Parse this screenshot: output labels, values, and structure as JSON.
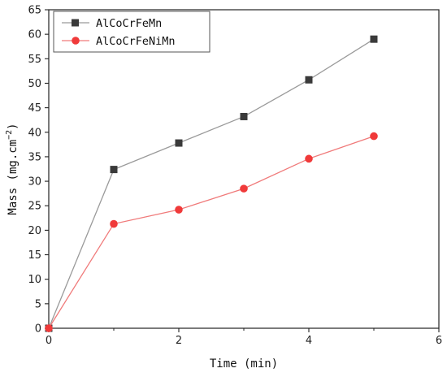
{
  "chart_data": {
    "type": "line",
    "xlabel": "Time (min)",
    "ylabel_main": "Mass (mg.cm",
    "ylabel_sup": "−2",
    "ylabel_end": ")",
    "xlim": [
      0,
      6
    ],
    "ylim": [
      0,
      65
    ],
    "xticks": [
      "0",
      "2",
      "4",
      "6"
    ],
    "yticks": [
      "0",
      "5",
      "10",
      "15",
      "20",
      "25",
      "30",
      "35",
      "40",
      "45",
      "50",
      "55",
      "60",
      "65"
    ],
    "grid": false,
    "legend_position": "top-left",
    "series": [
      {
        "name": "AlCoCrFeMn",
        "marker": "square",
        "marker_color": "#3a3a3a",
        "line_color": "#9a9a9a",
        "x": [
          0,
          1,
          2,
          3,
          4,
          5
        ],
        "y": [
          0,
          32.4,
          37.8,
          43.2,
          50.7,
          59.0
        ]
      },
      {
        "name": "AlCoCrFeNiMn",
        "marker": "circle",
        "marker_color": "#f03a3a",
        "line_color": "#f07a7a",
        "x": [
          0,
          1,
          2,
          3,
          4,
          5
        ],
        "y": [
          0,
          21.3,
          24.2,
          28.5,
          34.6,
          39.2
        ]
      }
    ]
  }
}
